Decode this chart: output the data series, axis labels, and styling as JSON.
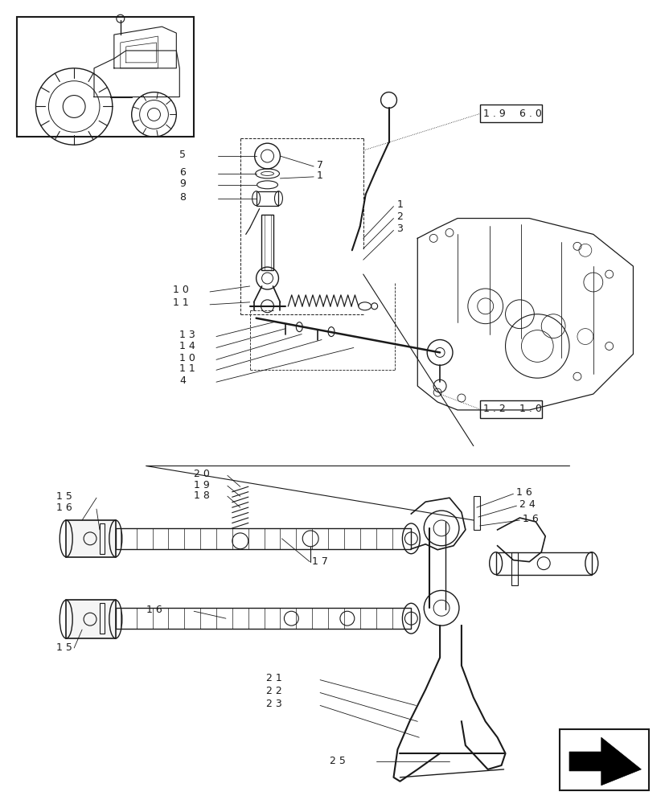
{
  "bg_color": "#ffffff",
  "line_color": "#1a1a1a",
  "fig_width": 8.28,
  "fig_height": 10.0,
  "dpi": 100
}
